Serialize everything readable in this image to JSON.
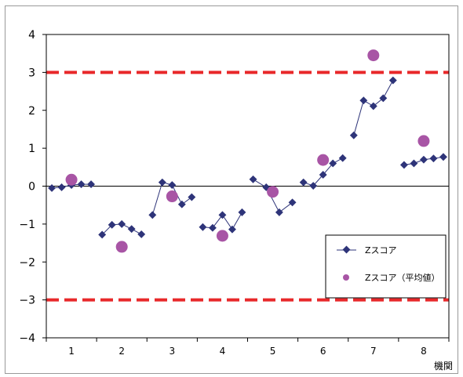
{
  "chart_data": {
    "type": "scatter",
    "title": "",
    "xlabel": "機関",
    "ylabel": "",
    "ylim": [
      -4,
      4
    ],
    "yticks": [
      4,
      3,
      2,
      1,
      0,
      -1,
      -2,
      -3,
      -4
    ],
    "categories": [
      "1",
      "2",
      "3",
      "4",
      "5",
      "6",
      "7",
      "8"
    ],
    "series": [
      {
        "name": "Zスコア",
        "kind": "line-marker",
        "color": "#2E3479",
        "groups": [
          [
            -0.05,
            -0.03,
            0.03,
            0.05,
            0.05
          ],
          [
            -1.28,
            -1.02,
            -1.0,
            -1.13,
            -1.27
          ],
          [
            -0.76,
            0.1,
            0.03,
            -0.48,
            -0.29
          ],
          [
            -1.08,
            -1.1,
            -0.76,
            -1.14,
            -0.69
          ],
          [
            0.18,
            -0.03,
            -0.69,
            -0.43
          ],
          [
            0.1,
            0.01,
            0.3,
            0.6,
            0.74
          ],
          [
            1.34,
            2.26,
            2.11,
            2.32,
            2.79
          ],
          [
            0.56,
            0.6,
            0.7,
            0.73,
            0.77
          ]
        ]
      },
      {
        "name": "Zスコア（平均値）",
        "kind": "marker",
        "color": "#A855A5",
        "values": [
          0.17,
          -1.6,
          -0.27,
          -1.31,
          -0.15,
          0.69,
          3.45,
          1.19
        ]
      }
    ],
    "reference_lines": [
      3,
      -3
    ],
    "reference_color": "#E8282A",
    "zero_line": true,
    "grid": false,
    "legend_position": "bottom-right"
  }
}
